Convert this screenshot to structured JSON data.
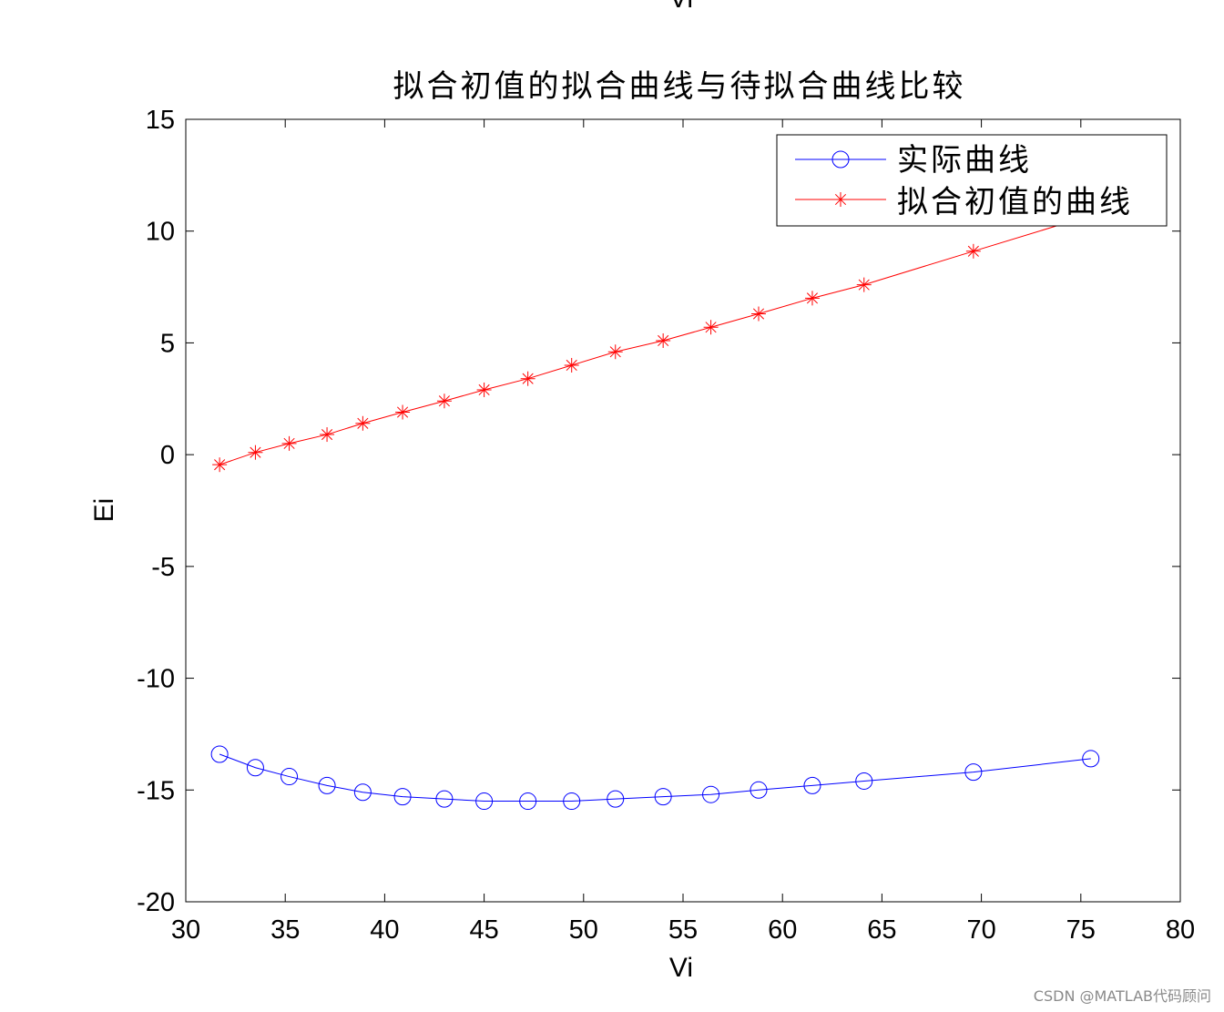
{
  "top_cutoff_label": "Vi",
  "watermark": "CSDN @MATLAB代码顾问",
  "chart_data": {
    "type": "line",
    "title": "拟合初值的拟合曲线与待拟合曲线比较",
    "xlabel": "Vi",
    "ylabel": "Ei",
    "xlim": [
      30,
      80
    ],
    "ylim": [
      -20,
      15
    ],
    "xticks": [
      30,
      35,
      40,
      45,
      50,
      55,
      60,
      65,
      70,
      75,
      80
    ],
    "yticks": [
      15,
      10,
      5,
      0,
      -5,
      -10,
      -15,
      -20
    ],
    "grid": false,
    "legend_position": "top-right",
    "series": [
      {
        "name": "实际曲线",
        "color": "#0000ff",
        "marker": "circle",
        "x": [
          31.7,
          33.5,
          35.2,
          37.1,
          38.9,
          40.9,
          43.0,
          45.0,
          47.2,
          49.4,
          51.6,
          54.0,
          56.4,
          58.8,
          61.5,
          64.1,
          69.6,
          75.5
        ],
        "y": [
          -13.4,
          -14.0,
          -14.4,
          -14.8,
          -15.1,
          -15.3,
          -15.4,
          -15.5,
          -15.5,
          -15.5,
          -15.4,
          -15.3,
          -15.2,
          -15.0,
          -14.8,
          -14.6,
          -14.2,
          -13.6
        ]
      },
      {
        "name": "拟合初值的曲线",
        "color": "#ff0000",
        "marker": "star",
        "x": [
          31.7,
          33.5,
          35.2,
          37.1,
          38.9,
          40.9,
          43.0,
          45.0,
          47.2,
          49.4,
          51.6,
          54.0,
          56.4,
          58.8,
          61.5,
          64.1,
          69.6,
          75.5
        ],
        "y": [
          -0.45,
          0.1,
          0.5,
          0.9,
          1.4,
          1.9,
          2.4,
          2.9,
          3.4,
          4.0,
          4.6,
          5.1,
          5.7,
          6.3,
          7.0,
          7.6,
          9.1,
          10.7
        ]
      }
    ]
  }
}
